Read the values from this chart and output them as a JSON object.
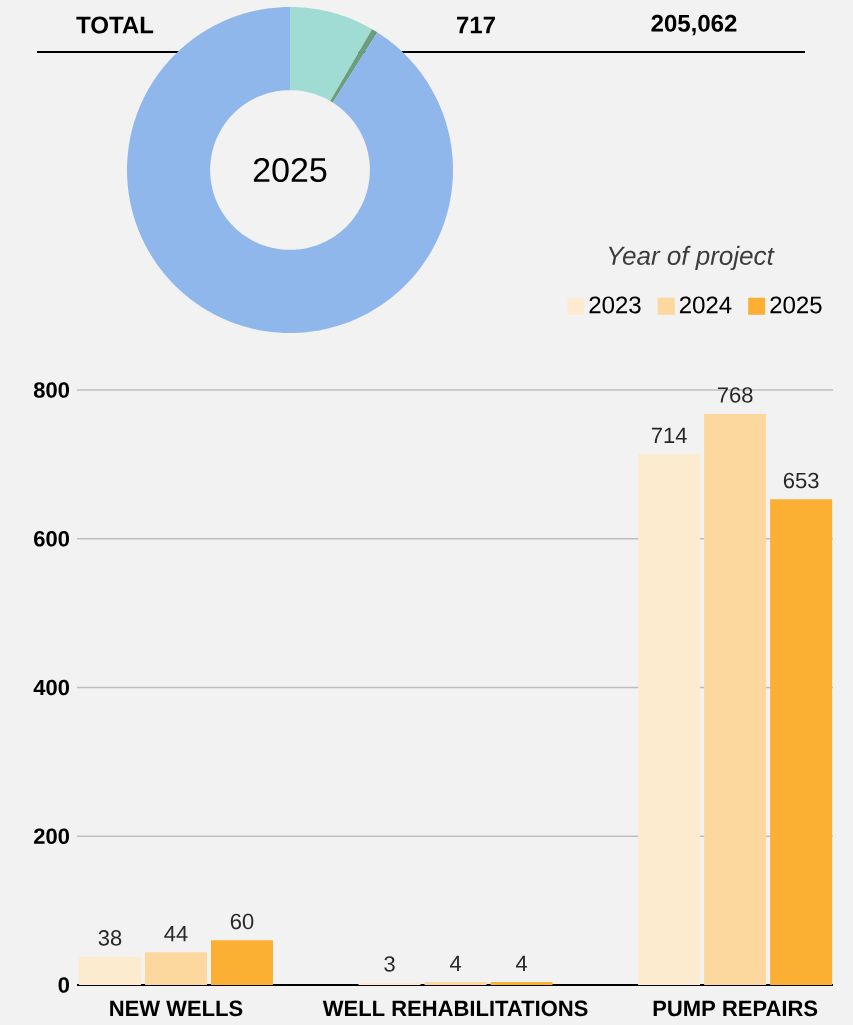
{
  "chart_data": [
    {
      "type": "donut",
      "title": "2025",
      "categories": [
        null,
        null,
        null
      ],
      "values": [
        8.4,
        0.6,
        91.0
      ],
      "colors": [
        "#a0dcd4",
        "#6b9e7c",
        "#8fb7eb"
      ],
      "annotations": [
        "TOTAL",
        "717",
        "205,062"
      ]
    },
    {
      "type": "bar",
      "categories": [
        "NEW WELLS",
        "WELL REHABILITATIONS",
        "PUMP REPAIRS"
      ],
      "series": [
        {
          "name": "2023",
          "color": "#fdebd0",
          "values": [
            38,
            3,
            714
          ]
        },
        {
          "name": "2024",
          "color": "#fdd89e",
          "values": [
            44,
            4,
            768
          ]
        },
        {
          "name": "2025",
          "color": "#fbb034",
          "values": [
            60,
            4,
            653
          ]
        }
      ],
      "ylim": [
        0,
        800
      ],
      "yticks": [
        0,
        200,
        400,
        600,
        800
      ],
      "grid": "y",
      "legend": "top right",
      "legend_title": "Year of project",
      "data_labels": true
    }
  ]
}
